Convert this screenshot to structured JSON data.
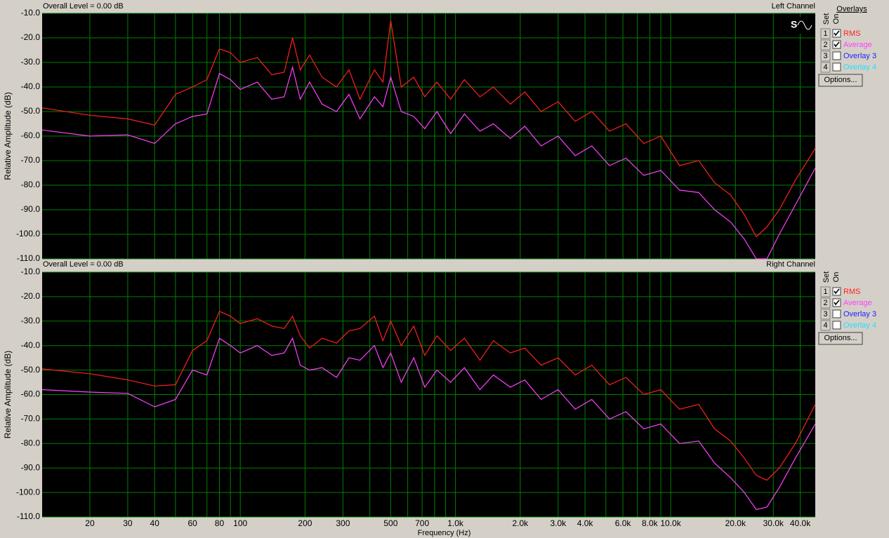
{
  "chart_data": [
    {
      "type": "line",
      "header": "Overall Level = 0.00 dB",
      "title": "Left Channel",
      "ylabel": "Relative Amplitude (dB)",
      "xscale": "log",
      "grid": true,
      "grid_color": "#008000",
      "background": "#000000",
      "xlim": [
        12,
        47000
      ],
      "ylim": [
        -110,
        -10
      ],
      "xgrid": [
        20,
        30,
        40,
        50,
        60,
        70,
        80,
        90,
        100,
        200,
        300,
        400,
        500,
        600,
        700,
        800,
        900,
        1000,
        2000,
        3000,
        4000,
        5000,
        6000,
        7000,
        8000,
        9000,
        10000,
        20000,
        30000,
        40000
      ],
      "yticks": [
        {
          "value": -10,
          "label": "-10.0"
        },
        {
          "value": -20,
          "label": "-20.0"
        },
        {
          "value": -30,
          "label": "-30.0"
        },
        {
          "value": -40,
          "label": "-40.0"
        },
        {
          "value": -50,
          "label": "-50.0"
        },
        {
          "value": -60,
          "label": "-60.0"
        },
        {
          "value": -70,
          "label": "-70.0"
        },
        {
          "value": -80,
          "label": "-80.0"
        },
        {
          "value": -90,
          "label": "-90.0"
        },
        {
          "value": -100,
          "label": "-100.0"
        },
        {
          "value": -110,
          "label": "-110.0"
        }
      ],
      "x": [
        12,
        20,
        30,
        40,
        50,
        60,
        70,
        80,
        90,
        100,
        120,
        140,
        160,
        175,
        190,
        210,
        240,
        280,
        320,
        360,
        420,
        460,
        500,
        560,
        640,
        720,
        820,
        950,
        1100,
        1300,
        1500,
        1800,
        2100,
        2500,
        3000,
        3600,
        4300,
        5200,
        6200,
        7500,
        9000,
        11000,
        13500,
        16000,
        19000,
        22000,
        25000,
        28000,
        32000,
        38000,
        47000
      ],
      "series": [
        {
          "name": "RMS",
          "color": "#ff2020",
          "values": [
            -48.5,
            -51.5,
            -53,
            -55.5,
            -43,
            -40,
            -37,
            -24.5,
            -26,
            -30,
            -28,
            -35,
            -34,
            -20,
            -33,
            -27,
            -36,
            -40,
            -33,
            -45,
            -33,
            -38,
            -13,
            -40,
            -36,
            -44,
            -38,
            -45,
            -37,
            -44,
            -40,
            -47,
            -42,
            -50,
            -46,
            -54,
            -50,
            -58,
            -55,
            -63,
            -60,
            -72,
            -70,
            -79,
            -84,
            -92,
            -101,
            -97,
            -90,
            -78,
            -65
          ]
        },
        {
          "name": "Average",
          "color": "#ff40ff",
          "values": [
            -57.5,
            -60,
            -59.5,
            -63,
            -55,
            -52,
            -51,
            -34.5,
            -37,
            -41,
            -38,
            -45,
            -44,
            -32,
            -45,
            -38,
            -47,
            -50,
            -43,
            -53,
            -44,
            -48,
            -36,
            -50,
            -52,
            -57,
            -50,
            -59,
            -51,
            -58,
            -55,
            -61,
            -56,
            -64,
            -60,
            -68,
            -64,
            -72,
            -69,
            -76,
            -74,
            -82,
            -83,
            -90,
            -95,
            -102,
            -110,
            -110,
            -100,
            -88,
            -73
          ]
        }
      ]
    },
    {
      "type": "line",
      "header": "Overall Level = 0.00 dB",
      "title": "Right Channel",
      "ylabel": "Relative Amplitude (dB)",
      "xlabel": "Frequency (Hz)",
      "xscale": "log",
      "grid": true,
      "grid_color": "#008000",
      "background": "#000000",
      "xlim": [
        12,
        47000
      ],
      "ylim": [
        -110,
        -10
      ],
      "xticks": [
        20,
        30,
        40,
        60,
        80,
        100,
        200,
        300,
        500,
        700,
        {
          "value": 1000,
          "label": "1.0k"
        },
        {
          "value": 2000,
          "label": "2.0k"
        },
        {
          "value": 3000,
          "label": "3.0k"
        },
        {
          "value": 4000,
          "label": "4.0k"
        },
        {
          "value": 6000,
          "label": "6.0k"
        },
        {
          "value": 8000,
          "label": "8.0k"
        },
        {
          "value": 10000,
          "label": "10.0k"
        },
        {
          "value": 20000,
          "label": "20.0k"
        },
        {
          "value": 30000,
          "label": "30.0k"
        },
        {
          "value": 40000,
          "label": "40.0k"
        }
      ],
      "xminor": [
        50,
        70,
        90,
        400,
        600,
        800,
        900,
        5000,
        7000,
        9000
      ],
      "yticks": [
        {
          "value": -10,
          "label": "-10.0"
        },
        {
          "value": -20,
          "label": "-20.0"
        },
        {
          "value": -30,
          "label": "-30.0"
        },
        {
          "value": -40,
          "label": "-40.0"
        },
        {
          "value": -50,
          "label": "-50.0"
        },
        {
          "value": -60,
          "label": "-60.0"
        },
        {
          "value": -70,
          "label": "-70.0"
        },
        {
          "value": -80,
          "label": "-80.0"
        },
        {
          "value": -90,
          "label": "-90.0"
        },
        {
          "value": -100,
          "label": "-100.0"
        },
        {
          "value": -110,
          "label": "-110.0"
        }
      ],
      "x": [
        12,
        20,
        30,
        40,
        50,
        60,
        70,
        80,
        90,
        100,
        120,
        140,
        160,
        175,
        190,
        210,
        240,
        280,
        320,
        360,
        420,
        460,
        500,
        560,
        640,
        720,
        820,
        950,
        1100,
        1300,
        1500,
        1800,
        2100,
        2500,
        3000,
        3600,
        4300,
        5200,
        6200,
        7500,
        9000,
        11000,
        13500,
        16000,
        19000,
        22000,
        25000,
        28000,
        32000,
        38000,
        47000
      ],
      "series": [
        {
          "name": "RMS",
          "color": "#ff2020",
          "values": [
            -49.5,
            -51.5,
            -54,
            -56.5,
            -56,
            -42,
            -38,
            -26,
            -28,
            -31,
            -29,
            -32,
            -33,
            -28,
            -36,
            -41,
            -37,
            -39,
            -34,
            -33,
            -28,
            -38,
            -30,
            -40,
            -32,
            -44,
            -36,
            -42,
            -37,
            -46,
            -38,
            -43,
            -41,
            -48,
            -45,
            -52,
            -48,
            -56,
            -53,
            -60,
            -58,
            -66,
            -64,
            -74,
            -79,
            -86,
            -93,
            -95,
            -90,
            -80,
            -64
          ]
        },
        {
          "name": "Average",
          "color": "#ff40ff",
          "values": [
            -58,
            -59,
            -59.5,
            -65,
            -62,
            -50,
            -52,
            -37,
            -40,
            -43,
            -40,
            -44,
            -43,
            -37,
            -48,
            -50,
            -49,
            -53,
            -45,
            -46,
            -40,
            -49,
            -43,
            -55,
            -45,
            -57,
            -50,
            -55,
            -49,
            -58,
            -52,
            -57,
            -54,
            -62,
            -58,
            -66,
            -62,
            -70,
            -67,
            -74,
            -72,
            -80,
            -79,
            -88,
            -94,
            -100,
            -107,
            -106,
            -98,
            -86,
            -72
          ]
        }
      ]
    }
  ],
  "overlays": {
    "title": "Overlays",
    "panels": [
      {
        "set_label": "Set",
        "on_label": "On",
        "button": "Options...",
        "rows": [
          {
            "set": "1",
            "checked": true,
            "name": "RMS",
            "color": "#ff2020"
          },
          {
            "set": "2",
            "checked": true,
            "name": "Average",
            "color": "#ff40ff"
          },
          {
            "set": "3",
            "checked": false,
            "name": "Overlay 3",
            "color": "#2020ff"
          },
          {
            "set": "4",
            "checked": false,
            "name": "Overlay 4",
            "color": "#20e0ff"
          }
        ]
      },
      {
        "set_label": "Set",
        "on_label": "On",
        "button": "Options...",
        "rows": [
          {
            "set": "1",
            "checked": true,
            "name": "RMS",
            "color": "#ff2020"
          },
          {
            "set": "2",
            "checked": true,
            "name": "Average",
            "color": "#ff40ff"
          },
          {
            "set": "3",
            "checked": false,
            "name": "Overlay 3",
            "color": "#2020ff"
          },
          {
            "set": "4",
            "checked": false,
            "name": "Overlay 4",
            "color": "#20e0ff"
          }
        ]
      }
    ]
  }
}
